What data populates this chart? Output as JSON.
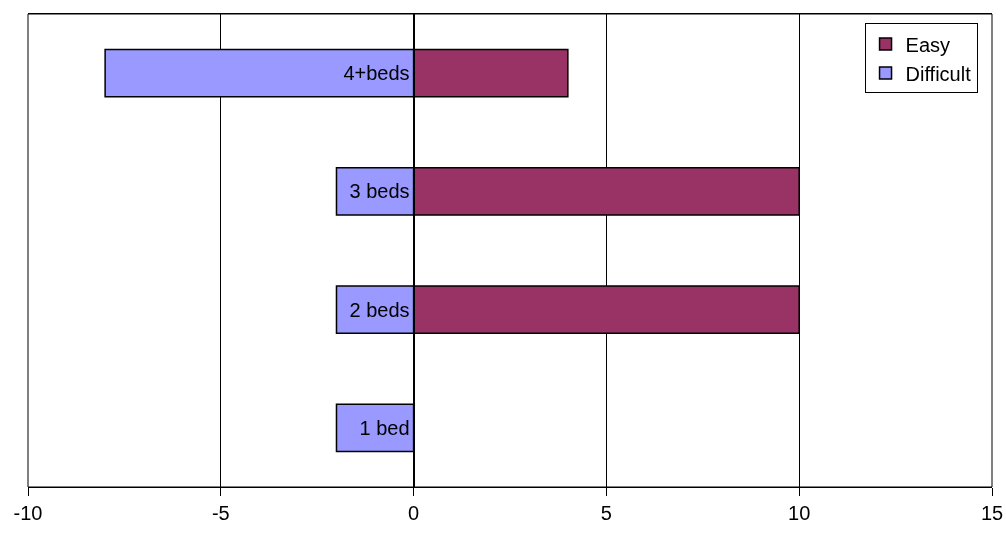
{
  "chart_data": {
    "type": "bar",
    "orientation": "horizontal",
    "stacked": true,
    "categories": [
      "4+beds",
      "3 beds",
      "2 beds",
      "1 bed"
    ],
    "series": [
      {
        "name": "Easy",
        "color": "#993366",
        "values": [
          4,
          10,
          10,
          null
        ]
      },
      {
        "name": "Difficult",
        "color": "#9999ff",
        "values": [
          -8,
          -2,
          -2,
          -2
        ]
      }
    ],
    "xlim": [
      -10,
      15
    ],
    "xticks": [
      -10,
      -5,
      0,
      5,
      10,
      15
    ],
    "grid": "x",
    "legend": "top right"
  }
}
